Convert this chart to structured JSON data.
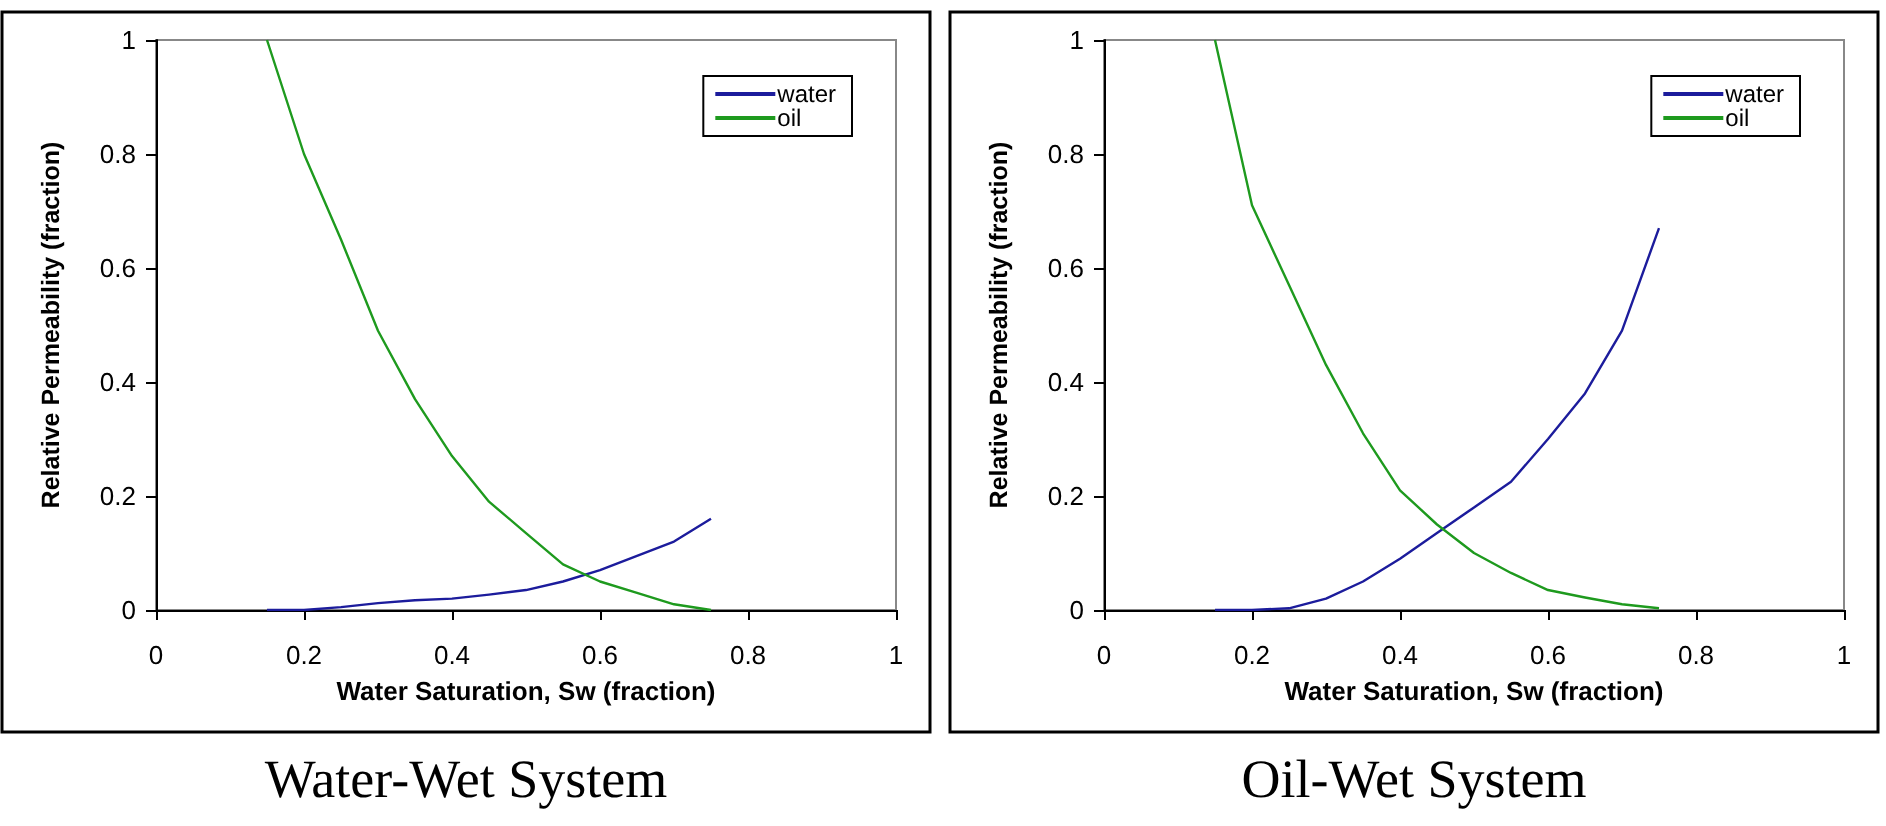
{
  "chart_data": [
    {
      "type": "line",
      "title": "Water-Wet System",
      "xlabel": "Water Saturation, Sw (fraction)",
      "ylabel": "Relative Permeability (fraction)",
      "x": [
        0.15,
        0.2,
        0.25,
        0.3,
        0.35,
        0.4,
        0.45,
        0.5,
        0.55,
        0.6,
        0.65,
        0.7,
        0.75
      ],
      "xlim": [
        0,
        1
      ],
      "ylim": [
        0,
        1
      ],
      "xticks": [
        0,
        0.2,
        0.4,
        0.6,
        0.8,
        1
      ],
      "yticks": [
        0,
        0.2,
        0.4,
        0.6,
        0.8,
        1
      ],
      "legend": "top right",
      "marker": "none",
      "line_style": "solid",
      "series": [
        {
          "name": "water",
          "color": "#1c1c9c",
          "values": [
            0,
            0,
            0.005,
            0.012,
            0.017,
            0.02,
            0.027,
            0.035,
            0.05,
            0.07,
            0.095,
            0.12,
            0.16
          ]
        },
        {
          "name": "oil",
          "color": "#1e9a1e",
          "values": [
            1.0,
            0.8,
            0.65,
            0.49,
            0.37,
            0.27,
            0.19,
            0.135,
            0.08,
            0.05,
            0.03,
            0.01,
            0
          ]
        }
      ]
    },
    {
      "type": "line",
      "title": "Oil-Wet System",
      "xlabel": "Water Saturation, Sw (fraction)",
      "ylabel": "Relative Permeability (fraction)",
      "x": [
        0.15,
        0.2,
        0.25,
        0.3,
        0.35,
        0.4,
        0.45,
        0.5,
        0.55,
        0.6,
        0.65,
        0.7,
        0.75
      ],
      "xlim": [
        0,
        1
      ],
      "ylim": [
        0,
        1
      ],
      "xticks": [
        0,
        0.2,
        0.4,
        0.6,
        0.8,
        1
      ],
      "yticks": [
        0,
        0.2,
        0.4,
        0.6,
        0.8,
        1
      ],
      "legend": "top right",
      "marker": "none",
      "line_style": "solid",
      "series": [
        {
          "name": "water",
          "color": "#1c1c9c",
          "values": [
            0,
            0,
            0.003,
            0.02,
            0.05,
            0.09,
            0.135,
            0.18,
            0.225,
            0.3,
            0.38,
            0.49,
            0.67
          ]
        },
        {
          "name": "oil",
          "color": "#1e9a1e",
          "values": [
            1.0,
            0.71,
            0.57,
            0.43,
            0.31,
            0.21,
            0.15,
            0.1,
            0.065,
            0.035,
            0.022,
            0.01,
            0.003
          ]
        }
      ]
    }
  ]
}
